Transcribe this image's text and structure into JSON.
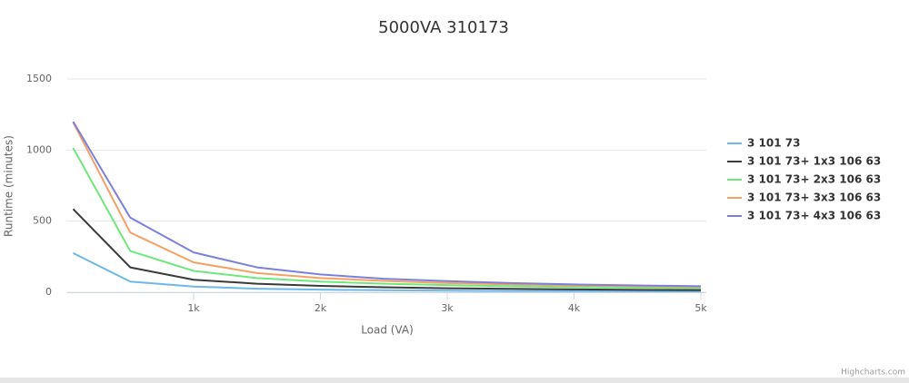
{
  "chart_data": {
    "type": "line",
    "title": "5000VA 310173",
    "x_label": "Load (VA)",
    "y_label": "Runtime (minutes)",
    "x": [
      50,
      500,
      1000,
      1500,
      2000,
      2500,
      3000,
      3500,
      4000,
      4500,
      5000
    ],
    "series": [
      {
        "name": "3 101 73",
        "color": "#6cb8ea",
        "values": [
          275,
          75,
          40,
          25,
          18,
          14,
          11,
          9,
          8,
          7,
          6
        ]
      },
      {
        "name": "3 101 73+ 1x3 106 63",
        "color": "#3a3a3a",
        "values": [
          585,
          175,
          88,
          60,
          45,
          35,
          28,
          24,
          20,
          17,
          15
        ]
      },
      {
        "name": "3 101 73+ 2x3 106 63",
        "color": "#6ee87b",
        "values": [
          1015,
          290,
          150,
          100,
          75,
          60,
          50,
          42,
          36,
          32,
          28
        ]
      },
      {
        "name": "3 101 73+ 3x3 106 63",
        "color": "#f6a065",
        "values": [
          1195,
          420,
          210,
          135,
          100,
          80,
          65,
          55,
          48,
          42,
          38
        ]
      },
      {
        "name": "3 101 73+ 4x3 106 63",
        "color": "#7b80dd",
        "values": [
          1200,
          525,
          280,
          175,
          125,
          95,
          78,
          65,
          55,
          48,
          42
        ]
      }
    ],
    "xlim": [
      0,
      5000
    ],
    "xticks": [
      {
        "value": 1000,
        "label": "1k"
      },
      {
        "value": 2000,
        "label": "2k"
      },
      {
        "value": 3000,
        "label": "3k"
      },
      {
        "value": 4000,
        "label": "4k"
      },
      {
        "value": 5000,
        "label": "5k"
      }
    ],
    "ylim": [
      0,
      1500
    ],
    "yticks": [
      0,
      500,
      1000,
      1500
    ],
    "grid": true,
    "legend": "right",
    "credits": "Highcharts.com"
  }
}
